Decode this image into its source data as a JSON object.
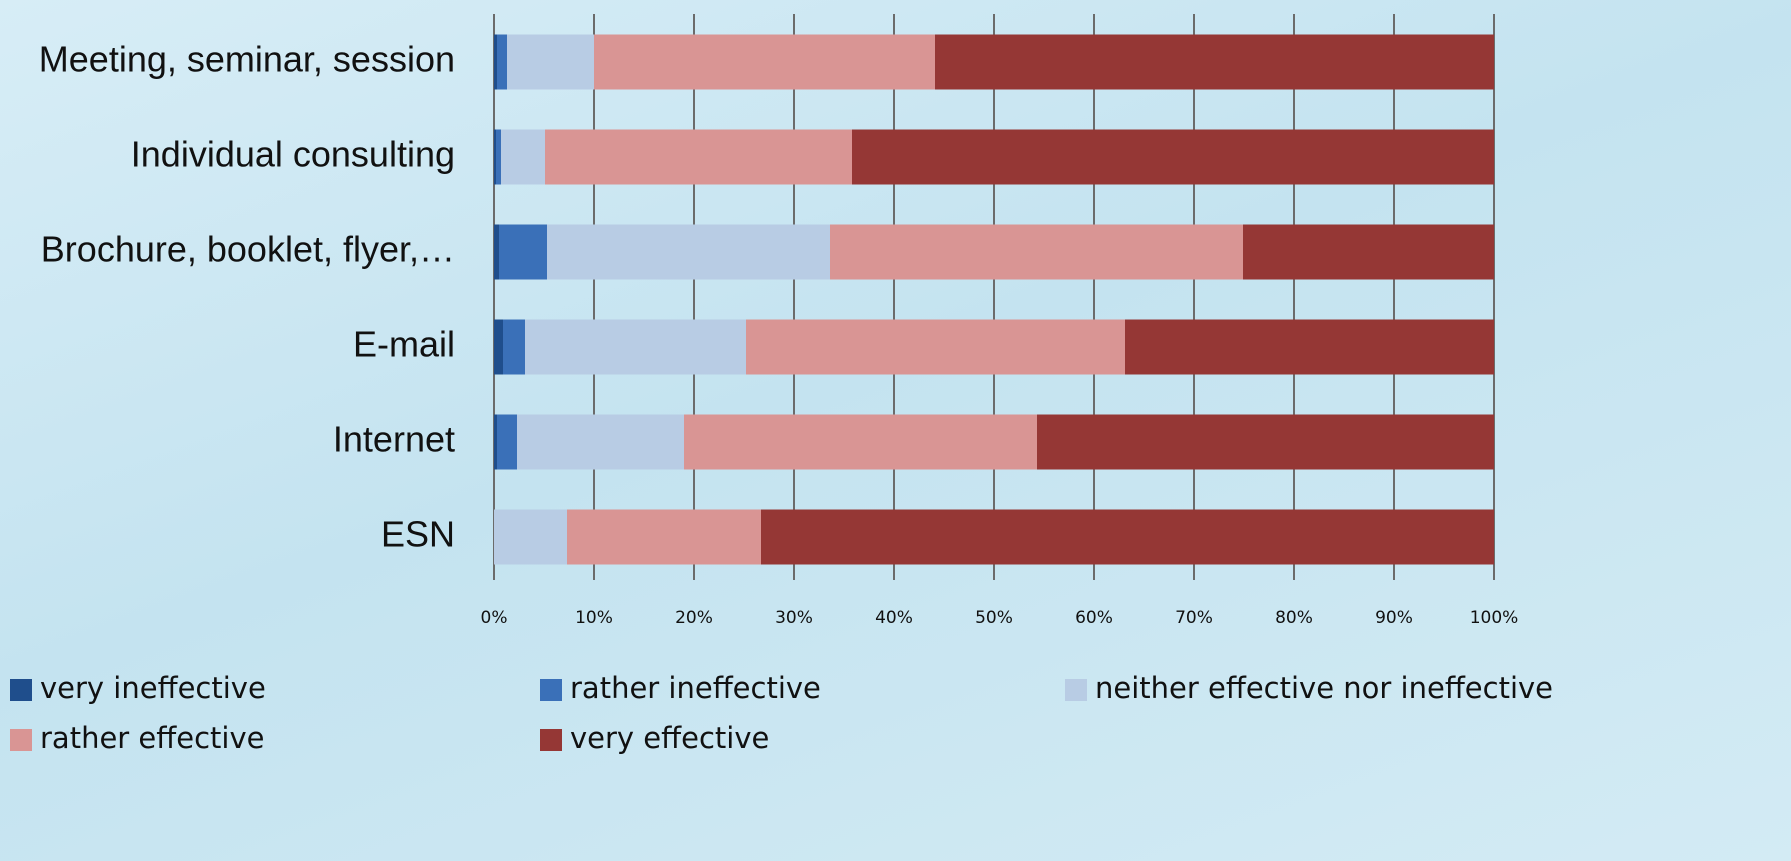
{
  "chart_data": {
    "type": "stacked-barh",
    "categories": [
      "Meeting, seminar, session",
      "Individual consulting",
      "Brochure, booklet, flyer,…",
      "E-mail",
      "Internet",
      "ESN"
    ],
    "series": [
      {
        "name": "very ineffective",
        "color": "#1f4e8c",
        "values": [
          0.3,
          0.2,
          0.5,
          0.9,
          0.3,
          0
        ]
      },
      {
        "name": "rather ineffective",
        "color": "#3a70b8",
        "values": [
          1.0,
          0.5,
          4.8,
          2.2,
          2.0,
          0
        ]
      },
      {
        "name": "neither effective nor ineffective",
        "color": "#b8cce4",
        "values": [
          8.7,
          4.4,
          28.3,
          22.1,
          16.7,
          7.3
        ]
      },
      {
        "name": "rather effective",
        "color": "#d99594",
        "values": [
          34.1,
          30.7,
          41.3,
          37.9,
          35.3,
          19.4
        ]
      },
      {
        "name": "very effective",
        "color": "#953735",
        "values": [
          55.9,
          64.2,
          25.1,
          36.9,
          45.7,
          73.3
        ]
      }
    ],
    "xlim": [
      0,
      100
    ],
    "xticks": [
      {
        "value": 0,
        "label": "0%"
      },
      {
        "value": 10,
        "label": "10%"
      },
      {
        "value": 20,
        "label": "20%"
      },
      {
        "value": 30,
        "label": "30%"
      },
      {
        "value": 40,
        "label": "40%"
      },
      {
        "value": 50,
        "label": "50%"
      },
      {
        "value": 60,
        "label": "60%"
      },
      {
        "value": 70,
        "label": "70%"
      },
      {
        "value": 80,
        "label": "80%"
      },
      {
        "value": 90,
        "label": "90%"
      },
      {
        "value": 100,
        "label": "100%"
      }
    ],
    "grid": true
  }
}
